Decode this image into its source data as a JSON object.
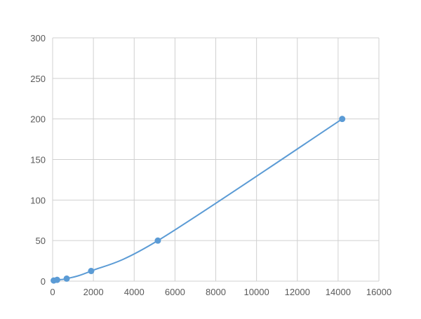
{
  "chart_data": {
    "type": "scatter",
    "title": "",
    "xlabel": "",
    "ylabel": "",
    "xlim": [
      0,
      16000
    ],
    "ylim": [
      0,
      300
    ],
    "xticks": [
      "0",
      "2000",
      "4000",
      "6000",
      "8000",
      "10000",
      "12000",
      "14000",
      "16000"
    ],
    "yticks": [
      "0",
      "50",
      "100",
      "150",
      "200",
      "250",
      "300"
    ],
    "grid": true,
    "smooth_line": true,
    "color": "#5b9bd5",
    "series": [
      {
        "x": [
          55,
          220,
          690,
          1890,
          5160,
          14200
        ],
        "y": [
          0.8,
          1.6,
          3.1,
          12.5,
          50,
          200
        ]
      }
    ]
  }
}
